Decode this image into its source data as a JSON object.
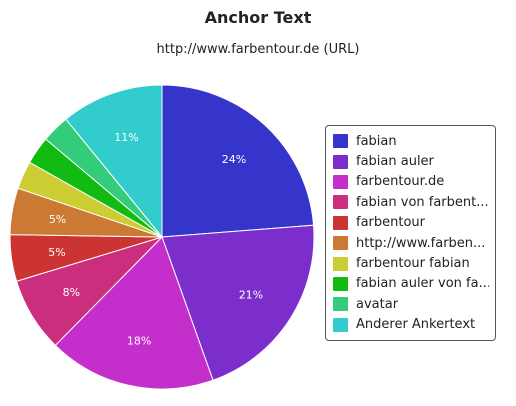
{
  "chart_data": {
    "type": "pie",
    "title": "Anchor Text",
    "subtitle": "http://www.farbentour.de (URL)",
    "legend_position": "right",
    "slices": [
      {
        "label": "fabian",
        "legend": "fabian",
        "value": 24,
        "value_label": "24%",
        "color": "#3535cc"
      },
      {
        "label": "fabian auler",
        "legend": "fabian auler",
        "value": 21,
        "value_label": "21%",
        "color": "#7b2ecb"
      },
      {
        "label": "farbentour.de",
        "legend": "farbentour.de",
        "value": 18,
        "value_label": "18%",
        "color": "#c42ecb"
      },
      {
        "label": "fabian von farbent...",
        "legend": "fabian von farbent...",
        "value": 8,
        "value_label": "8%",
        "color": "#cc2e7e"
      },
      {
        "label": "farbentour",
        "legend": "farbentour",
        "value": 5,
        "value_label": "5%",
        "color": "#cc3333"
      },
      {
        "label": "http://www.farben...",
        "legend": "http://www.farben...",
        "value": 5,
        "value_label": "5%",
        "color": "#cc7a33"
      },
      {
        "label": "farbentour fabian",
        "legend": "farbentour fabian",
        "value": 3,
        "value_label": "",
        "color": "#cccc33"
      },
      {
        "label": "fabian auler von fa...",
        "legend": "fabian auler von fa...",
        "value": 3,
        "value_label": "",
        "color": "#11bb11"
      },
      {
        "label": "avatar",
        "legend": "avatar",
        "value": 3,
        "value_label": "",
        "color": "#33cc7a"
      },
      {
        "label": "Anderer Ankertext",
        "legend": "Anderer Ankertext",
        "value": 11,
        "value_label": "11%",
        "color": "#33cccc"
      }
    ]
  }
}
